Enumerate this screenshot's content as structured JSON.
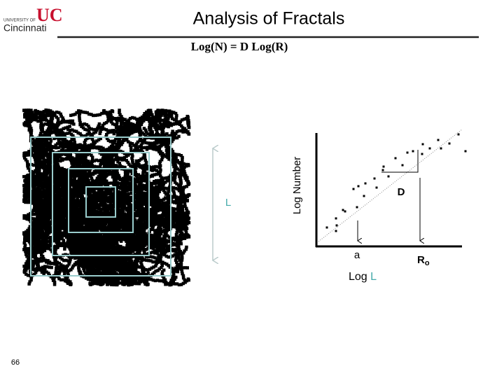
{
  "logo": {
    "top": "UNIVERSITY OF",
    "mark": "UC",
    "name": "Cincinnati"
  },
  "title": "Analysis of Fractals",
  "formula": "Log(N) = D Log(R)",
  "figure": {
    "size_label": "L",
    "y_axis": "Log Number",
    "slope_label": "D",
    "small_label": "a",
    "large_label": {
      "main": "R",
      "sub": "o"
    },
    "x_axis": {
      "main": "Log",
      "var": "L"
    }
  },
  "page_number": "66"
}
